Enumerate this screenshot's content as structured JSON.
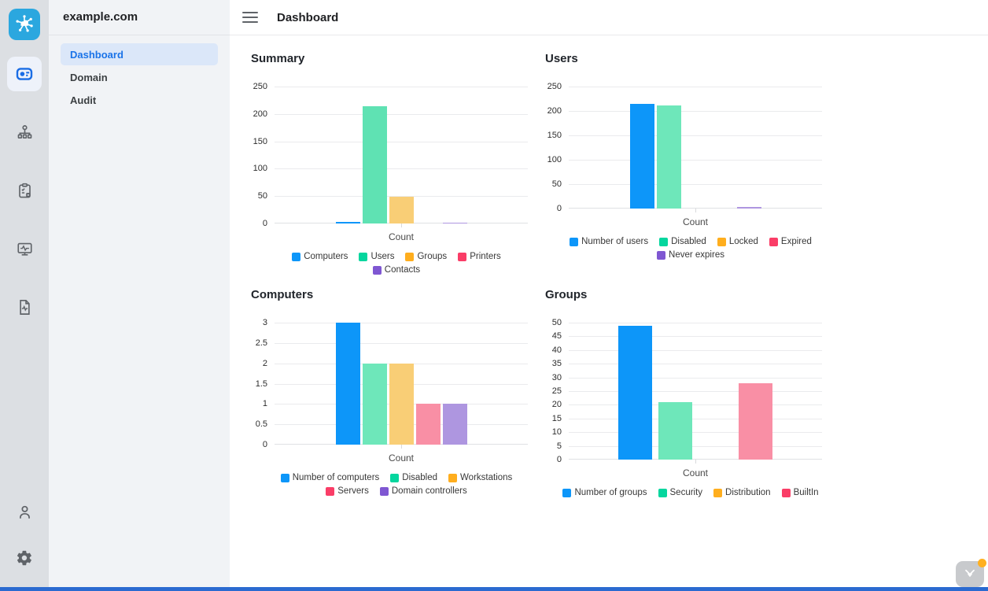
{
  "rail": {
    "logo_icon": "hub-network-icon",
    "items": [
      {
        "icon": "dashboard-widgets-icon",
        "active": true
      },
      {
        "icon": "sitemap-icon",
        "active": false
      },
      {
        "icon": "audit-clipboard-icon",
        "active": false
      },
      {
        "icon": "monitor-activity-icon",
        "active": false
      },
      {
        "icon": "file-activity-icon",
        "active": false
      }
    ],
    "bottom_items": [
      {
        "icon": "user-icon"
      },
      {
        "icon": "settings-gear-icon"
      }
    ]
  },
  "sidebar": {
    "domain": "example.com",
    "items": [
      {
        "label": "Dashboard",
        "active": true
      },
      {
        "label": "Domain",
        "active": false
      },
      {
        "label": "Audit",
        "active": false
      }
    ]
  },
  "header": {
    "title": "Dashboard",
    "menu_icon": "hamburger-icon"
  },
  "colors": {
    "accent_blue": "#1A73E8",
    "logo_blue": "#2BA7DF",
    "rail_bg": "#DCDFE3",
    "sidebar_bg": "#F1F3F6",
    "active_item_bg": "#DBE7F9",
    "bottom_bar_blue": "#2B6AD0",
    "notification_dot_orange": "#FFB020",
    "series_blue": "#0D96F9",
    "series_green": "#05D69E",
    "series_amber": "#FFAE1E",
    "series_pink": "#FA3D67",
    "series_purple": "#7F57D2"
  },
  "widget": {
    "icon": "feedback-widget-icon",
    "has_notification_dot": true
  },
  "chart_data": [
    {
      "type": "bar",
      "title": "Summary",
      "xlabel": "Count",
      "categories": [
        "Count"
      ],
      "ylim": [
        0,
        250
      ],
      "yticks": [
        0,
        50,
        100,
        150,
        200,
        250
      ],
      "grid": true,
      "legend_position": "bottom",
      "legend_rows": 1,
      "series": [
        {
          "name": "Computers",
          "value": 3,
          "legend_color": "#0D96F9",
          "bar_color": "#0D96F9"
        },
        {
          "name": "Users",
          "value": 214,
          "legend_color": "#05D69E",
          "bar_color": "#5FE2B3"
        },
        {
          "name": "Groups",
          "value": 49,
          "legend_color": "#FFAE1E",
          "bar_color": "#F9CE76"
        },
        {
          "name": "Printers",
          "value": 0,
          "legend_color": "#FA3D67",
          "bar_color": "#F98FA5"
        },
        {
          "name": "Contacts",
          "value": 2,
          "legend_color": "#7F57D2",
          "bar_color": "#AE96E0"
        }
      ]
    },
    {
      "type": "bar",
      "title": "Users",
      "xlabel": "Count",
      "categories": [
        "Count"
      ],
      "ylim": [
        0,
        250
      ],
      "yticks": [
        0,
        50,
        100,
        150,
        200,
        250
      ],
      "grid": true,
      "legend_position": "bottom",
      "legend_rows": 2,
      "series": [
        {
          "name": "Number of users",
          "value": 214,
          "legend_color": "#0D96F9",
          "bar_color": "#0D96F9"
        },
        {
          "name": "Disabled",
          "value": 211,
          "legend_color": "#05D69E",
          "bar_color": "#6EE7BA"
        },
        {
          "name": "Locked",
          "value": 0,
          "legend_color": "#FFAE1E",
          "bar_color": "#F9CE76"
        },
        {
          "name": "Expired",
          "value": 0,
          "legend_color": "#FA3D67",
          "bar_color": "#F98FA5"
        },
        {
          "name": "Never expires",
          "value": 3,
          "legend_color": "#7F57D2",
          "bar_color": "#AE96E0"
        }
      ]
    },
    {
      "type": "bar",
      "title": "Computers",
      "xlabel": "Count",
      "categories": [
        "Count"
      ],
      "ylim": [
        0,
        3
      ],
      "yticks": [
        0,
        0.5,
        1,
        1.5,
        2,
        2.5,
        3
      ],
      "grid": true,
      "legend_position": "bottom",
      "legend_rows": 2,
      "series": [
        {
          "name": "Number of computers",
          "value": 3,
          "legend_color": "#0D96F9",
          "bar_color": "#0D96F9"
        },
        {
          "name": "Disabled",
          "value": 2,
          "legend_color": "#05D69E",
          "bar_color": "#6EE7BA"
        },
        {
          "name": "Workstations",
          "value": 2,
          "legend_color": "#FFAE1E",
          "bar_color": "#F9CE76"
        },
        {
          "name": "Servers",
          "value": 1,
          "legend_color": "#FA3D67",
          "bar_color": "#F98FA5"
        },
        {
          "name": "Domain controllers",
          "value": 1,
          "legend_color": "#7F57D2",
          "bar_color": "#AE96E0"
        }
      ]
    },
    {
      "type": "bar",
      "title": "Groups",
      "xlabel": "Count",
      "categories": [
        "Count"
      ],
      "ylim": [
        0,
        50
      ],
      "yticks": [
        0,
        5,
        10,
        15,
        20,
        25,
        30,
        35,
        40,
        45,
        50
      ],
      "grid": true,
      "legend_position": "bottom",
      "legend_rows": 1,
      "series": [
        {
          "name": "Number of groups",
          "value": 49,
          "legend_color": "#0D96F9",
          "bar_color": "#0D96F9"
        },
        {
          "name": "Security",
          "value": 21,
          "legend_color": "#05D69E",
          "bar_color": "#6EE7BA"
        },
        {
          "name": "Distribution",
          "value": 0,
          "legend_color": "#FFAE1E",
          "bar_color": "#F9CE76"
        },
        {
          "name": "BuiltIn",
          "value": 28,
          "legend_color": "#FA3D67",
          "bar_color": "#F98FA5"
        }
      ]
    }
  ]
}
